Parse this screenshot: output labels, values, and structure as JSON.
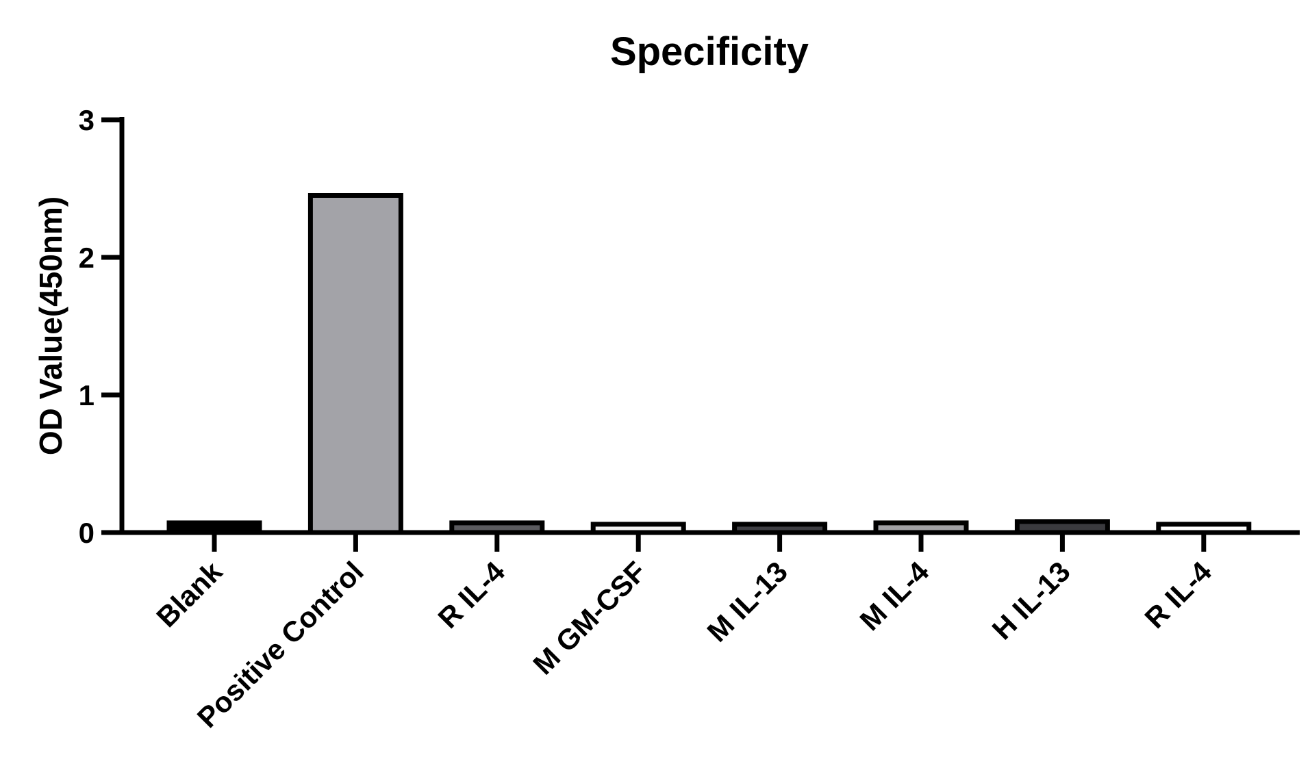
{
  "chart_data": {
    "type": "bar",
    "title": "Specificity",
    "xlabel": "",
    "ylabel": "OD Value(450nm)",
    "ylim": [
      0,
      3
    ],
    "yticks": [
      0,
      1,
      2,
      3
    ],
    "yticks_text": [
      "0",
      "1",
      "2",
      "3"
    ],
    "categories": [
      "Blank",
      "Positive Control",
      "R IL-4",
      "M GM-CSF",
      "M IL-13",
      "M IL-4",
      "H IL-13",
      "R IL-4"
    ],
    "values": [
      0.07,
      2.45,
      0.07,
      0.06,
      0.06,
      0.07,
      0.08,
      0.06
    ],
    "bar_colors": [
      "#000000",
      "#a3a3a8",
      "#5b5b5f",
      "#f2f2f2",
      "#3f3f44",
      "#a0a0a4",
      "#3a3a3e",
      "#ffffff"
    ],
    "bar_edge_color": "#000000",
    "grid": false,
    "legend": "none"
  }
}
